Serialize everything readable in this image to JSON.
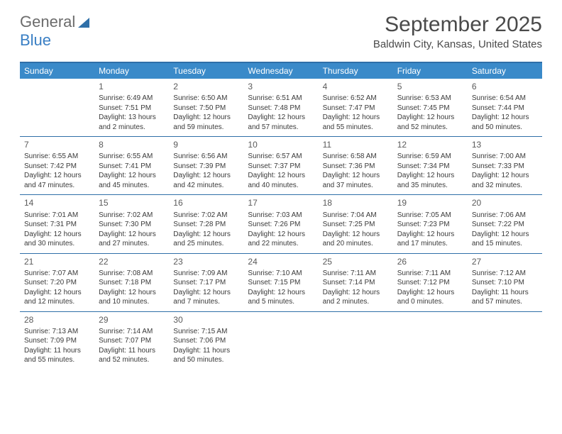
{
  "logo": {
    "general": "General",
    "blue": "Blue"
  },
  "title": "September 2025",
  "location": "Baldwin City, Kansas, United States",
  "colors": {
    "header_bg": "#3a8ac9",
    "header_text": "#ffffff",
    "rule": "#2f6fa8",
    "text": "#3a3a3a",
    "logo_gray": "#6b6b6b",
    "logo_blue": "#3a7fc4"
  },
  "dayNames": [
    "Sunday",
    "Monday",
    "Tuesday",
    "Wednesday",
    "Thursday",
    "Friday",
    "Saturday"
  ],
  "startDayIndex": 1,
  "daysInMonth": 30,
  "days": {
    "1": {
      "sunrise": "6:49 AM",
      "sunset": "7:51 PM",
      "daylight": "13 hours and 2 minutes."
    },
    "2": {
      "sunrise": "6:50 AM",
      "sunset": "7:50 PM",
      "daylight": "12 hours and 59 minutes."
    },
    "3": {
      "sunrise": "6:51 AM",
      "sunset": "7:48 PM",
      "daylight": "12 hours and 57 minutes."
    },
    "4": {
      "sunrise": "6:52 AM",
      "sunset": "7:47 PM",
      "daylight": "12 hours and 55 minutes."
    },
    "5": {
      "sunrise": "6:53 AM",
      "sunset": "7:45 PM",
      "daylight": "12 hours and 52 minutes."
    },
    "6": {
      "sunrise": "6:54 AM",
      "sunset": "7:44 PM",
      "daylight": "12 hours and 50 minutes."
    },
    "7": {
      "sunrise": "6:55 AM",
      "sunset": "7:42 PM",
      "daylight": "12 hours and 47 minutes."
    },
    "8": {
      "sunrise": "6:55 AM",
      "sunset": "7:41 PM",
      "daylight": "12 hours and 45 minutes."
    },
    "9": {
      "sunrise": "6:56 AM",
      "sunset": "7:39 PM",
      "daylight": "12 hours and 42 minutes."
    },
    "10": {
      "sunrise": "6:57 AM",
      "sunset": "7:37 PM",
      "daylight": "12 hours and 40 minutes."
    },
    "11": {
      "sunrise": "6:58 AM",
      "sunset": "7:36 PM",
      "daylight": "12 hours and 37 minutes."
    },
    "12": {
      "sunrise": "6:59 AM",
      "sunset": "7:34 PM",
      "daylight": "12 hours and 35 minutes."
    },
    "13": {
      "sunrise": "7:00 AM",
      "sunset": "7:33 PM",
      "daylight": "12 hours and 32 minutes."
    },
    "14": {
      "sunrise": "7:01 AM",
      "sunset": "7:31 PM",
      "daylight": "12 hours and 30 minutes."
    },
    "15": {
      "sunrise": "7:02 AM",
      "sunset": "7:30 PM",
      "daylight": "12 hours and 27 minutes."
    },
    "16": {
      "sunrise": "7:02 AM",
      "sunset": "7:28 PM",
      "daylight": "12 hours and 25 minutes."
    },
    "17": {
      "sunrise": "7:03 AM",
      "sunset": "7:26 PM",
      "daylight": "12 hours and 22 minutes."
    },
    "18": {
      "sunrise": "7:04 AM",
      "sunset": "7:25 PM",
      "daylight": "12 hours and 20 minutes."
    },
    "19": {
      "sunrise": "7:05 AM",
      "sunset": "7:23 PM",
      "daylight": "12 hours and 17 minutes."
    },
    "20": {
      "sunrise": "7:06 AM",
      "sunset": "7:22 PM",
      "daylight": "12 hours and 15 minutes."
    },
    "21": {
      "sunrise": "7:07 AM",
      "sunset": "7:20 PM",
      "daylight": "12 hours and 12 minutes."
    },
    "22": {
      "sunrise": "7:08 AM",
      "sunset": "7:18 PM",
      "daylight": "12 hours and 10 minutes."
    },
    "23": {
      "sunrise": "7:09 AM",
      "sunset": "7:17 PM",
      "daylight": "12 hours and 7 minutes."
    },
    "24": {
      "sunrise": "7:10 AM",
      "sunset": "7:15 PM",
      "daylight": "12 hours and 5 minutes."
    },
    "25": {
      "sunrise": "7:11 AM",
      "sunset": "7:14 PM",
      "daylight": "12 hours and 2 minutes."
    },
    "26": {
      "sunrise": "7:11 AM",
      "sunset": "7:12 PM",
      "daylight": "12 hours and 0 minutes."
    },
    "27": {
      "sunrise": "7:12 AM",
      "sunset": "7:10 PM",
      "daylight": "11 hours and 57 minutes."
    },
    "28": {
      "sunrise": "7:13 AM",
      "sunset": "7:09 PM",
      "daylight": "11 hours and 55 minutes."
    },
    "29": {
      "sunrise": "7:14 AM",
      "sunset": "7:07 PM",
      "daylight": "11 hours and 52 minutes."
    },
    "30": {
      "sunrise": "7:15 AM",
      "sunset": "7:06 PM",
      "daylight": "11 hours and 50 minutes."
    }
  },
  "labels": {
    "sunrise": "Sunrise:",
    "sunset": "Sunset:",
    "daylight": "Daylight:"
  }
}
